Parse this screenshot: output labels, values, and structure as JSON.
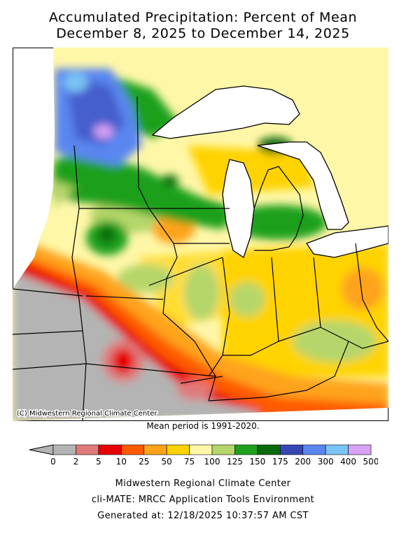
{
  "title_line1": "Accumulated Precipitation: Percent of Mean",
  "title_line2": "December 8, 2025 to December 14, 2025",
  "credit": "(C) Midwestern Regional Climate Center",
  "mean_period": "Mean period is 1991-2020.",
  "legend": {
    "ticks": [
      "0",
      "2",
      "5",
      "10",
      "25",
      "50",
      "75",
      "100",
      "125",
      "150",
      "175",
      "200",
      "300",
      "400",
      "500"
    ],
    "colors": [
      "#b4b4b4",
      "#e07a7a",
      "#e60000",
      "#ff5a00",
      "#ffa31a",
      "#ffd300",
      "#fff7a8",
      "#b5d66a",
      "#1ea01e",
      "#0a6a0a",
      "#3646b4",
      "#5a86f0",
      "#7ac4f5",
      "#d9a2f5"
    ],
    "under_color": "#b4b4b4"
  },
  "footer": {
    "line1": "Midwestern Regional Climate Center",
    "line2": "cli-MATE: MRCC Application Tools Environment",
    "line3": "Generated at: 12/18/2025 10:37:57 AM CST"
  }
}
